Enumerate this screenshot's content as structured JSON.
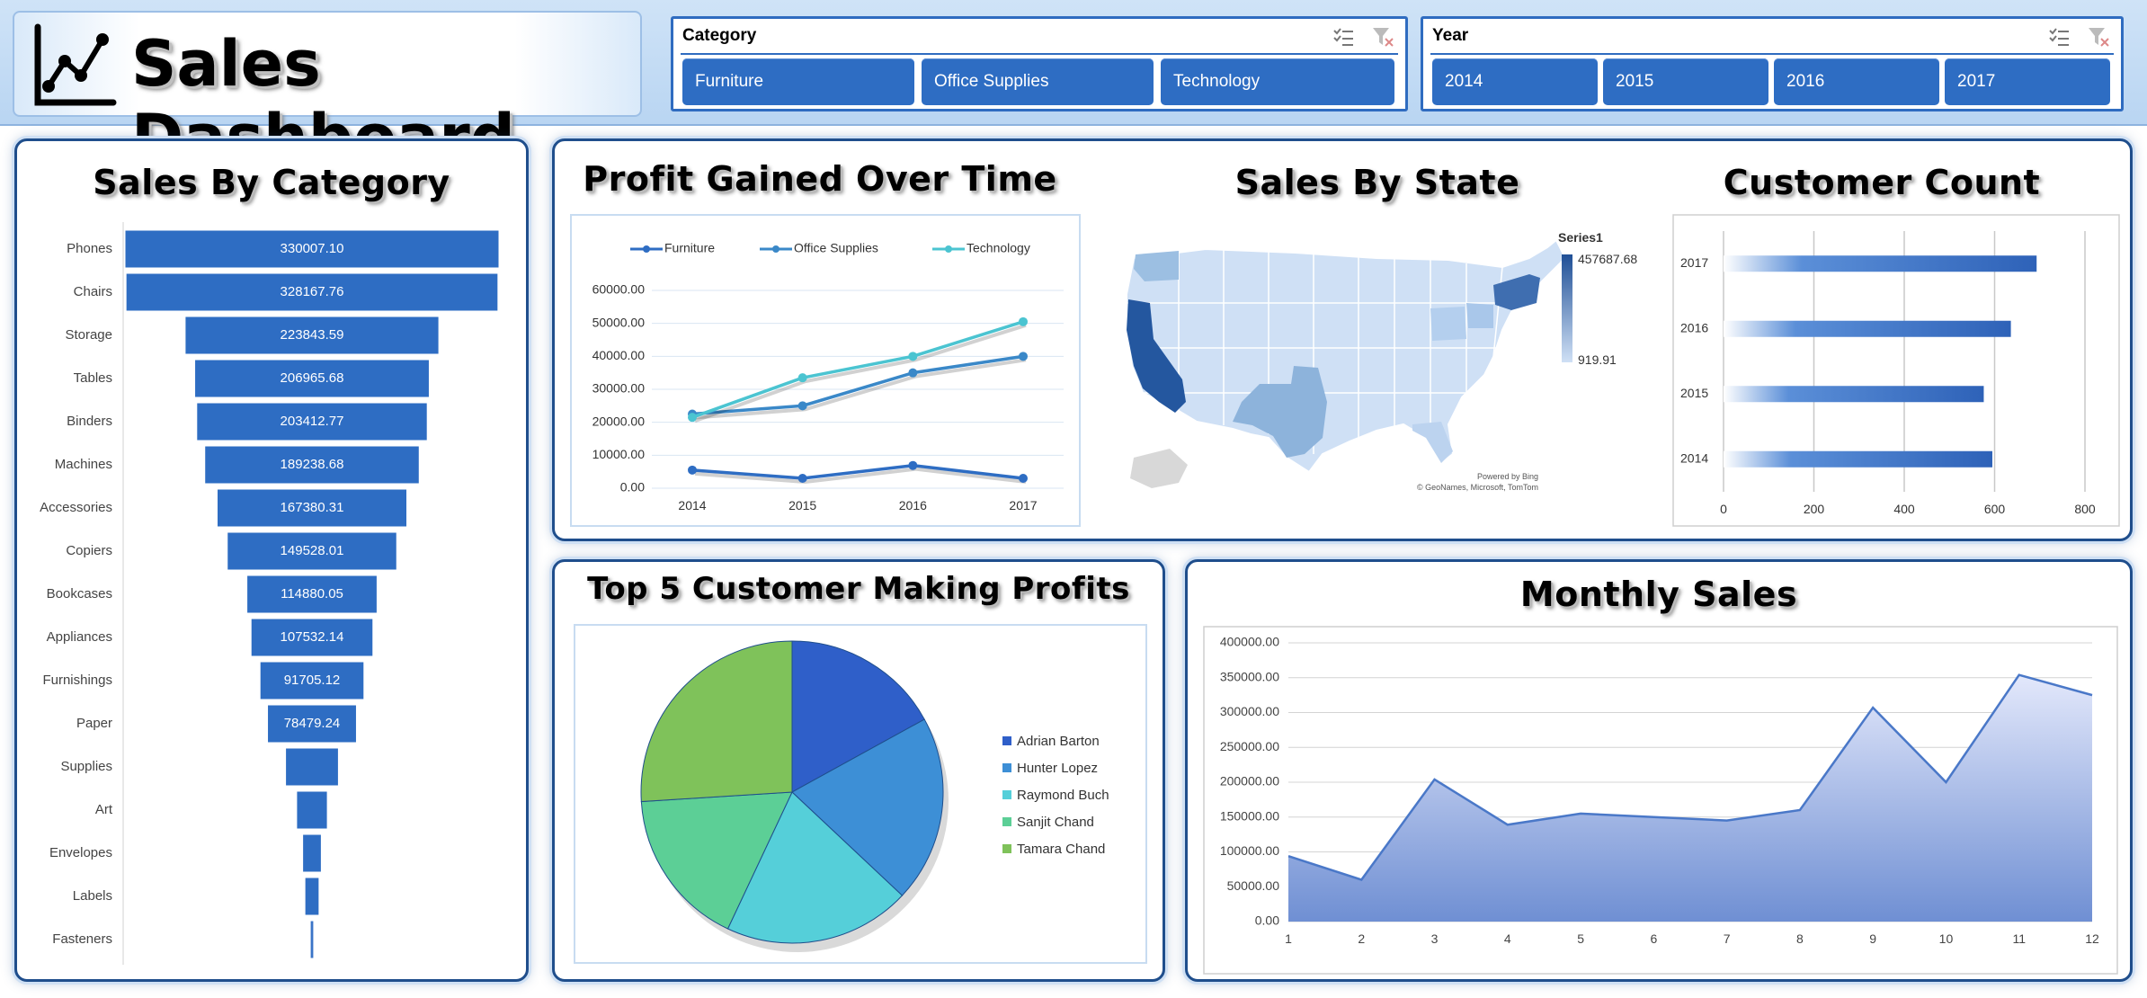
{
  "header": {
    "title": "Sales Dashboard"
  },
  "slicers": {
    "category": {
      "title": "Category",
      "items": [
        "Furniture",
        "Office Supplies",
        "Technology"
      ]
    },
    "year": {
      "title": "Year",
      "items": [
        "2014",
        "2015",
        "2016",
        "2017"
      ]
    }
  },
  "colors": {
    "primary": "#2e6dc3",
    "panel_border": "#1f4e8c",
    "accent_light": "#cfe3f7"
  },
  "panels": {
    "sales_by_category": {
      "title": "Sales By Category"
    },
    "profit_over_time": {
      "title": "Profit Gained Over Time"
    },
    "sales_by_state": {
      "title": "Sales By State",
      "legend_title": "Series1",
      "legend_max": "457687.68",
      "legend_min": "919.91",
      "credit_1": "Powered by Bing",
      "credit_2": "© GeoNames, Microsoft, TomTom"
    },
    "customer_count": {
      "title": "Customer Count"
    },
    "top5_customers": {
      "title": "Top 5 Customer Making Profits"
    },
    "monthly_sales": {
      "title": "Monthly Sales"
    }
  },
  "chart_data": [
    {
      "id": "sales_by_category",
      "type": "bar",
      "orientation": "horizontal",
      "style": "funnel",
      "categories": [
        "Phones",
        "Chairs",
        "Storage",
        "Tables",
        "Binders",
        "Machines",
        "Accessories",
        "Copiers",
        "Bookcases",
        "Appliances",
        "Furnishings",
        "Paper",
        "Supplies",
        "Art",
        "Envelopes",
        "Labels",
        "Fasteners"
      ],
      "values": [
        330007.1,
        328167.76,
        223843.59,
        206965.68,
        203412.77,
        189238.68,
        167380.31,
        149528.01,
        114880.05,
        107532.14,
        91705.12,
        78479.24,
        46673.54,
        27118.79,
        16476.4,
        12486.31,
        3024.28
      ],
      "labels": [
        "330007.10",
        "328167.76",
        "223843.59",
        "206965.68",
        "203412.77",
        "189238.68",
        "167380.31",
        "149528.01",
        "114880.05",
        "107532.14",
        "91705.12",
        "78479.24",
        "",
        "",
        "",
        "",
        ""
      ],
      "title": "Sales By Category"
    },
    {
      "id": "profit_over_time",
      "type": "line",
      "categories": [
        "2014",
        "2015",
        "2016",
        "2017"
      ],
      "series": [
        {
          "name": "Furniture",
          "values": [
            5500,
            3000,
            6900,
            3000
          ],
          "color": "#2e6dc3"
        },
        {
          "name": "Office Supplies",
          "values": [
            22500,
            25000,
            35000,
            40000
          ],
          "color": "#3a88c8"
        },
        {
          "name": "Technology",
          "values": [
            21500,
            33500,
            40000,
            50500
          ],
          "color": "#4bc4d1"
        }
      ],
      "ylim": [
        0,
        60000
      ],
      "yticks": [
        "0.00",
        "10000.00",
        "20000.00",
        "30000.00",
        "40000.00",
        "50000.00",
        "60000.00"
      ],
      "legend": "top",
      "grid": true,
      "title": "Profit Gained Over Time"
    },
    {
      "id": "sales_by_state",
      "type": "map",
      "region": "United States",
      "series_name": "Series1",
      "range": [
        919.91,
        457687.68
      ],
      "highlights": [
        {
          "state": "California",
          "level": 1.0
        },
        {
          "state": "New York",
          "level": 0.68
        },
        {
          "state": "Texas",
          "level": 0.37
        },
        {
          "state": "Washington",
          "level": 0.3
        }
      ],
      "title": "Sales By State"
    },
    {
      "id": "customer_count",
      "type": "bar",
      "orientation": "horizontal",
      "categories": [
        "2017",
        "2016",
        "2015",
        "2014"
      ],
      "values": [
        693,
        636,
        576,
        595
      ],
      "xlim": [
        0,
        800
      ],
      "xticks": [
        "0",
        "200",
        "400",
        "600",
        "800"
      ],
      "grid": true,
      "title": "Customer Count"
    },
    {
      "id": "top5_customers",
      "type": "pie",
      "labels": [
        "Adrian Barton",
        "Hunter Lopez",
        "Raymond Buch",
        "Sanjit Chand",
        "Tamara Chand"
      ],
      "values": [
        17,
        20,
        20,
        17,
        26
      ],
      "colors": [
        "#2f5fc9",
        "#3d8fd6",
        "#55cfd9",
        "#5ccf96",
        "#7fc25a"
      ],
      "legend": "right",
      "title": "Top 5 Customer Making Profits"
    },
    {
      "id": "monthly_sales",
      "type": "area",
      "x": [
        1,
        2,
        3,
        4,
        5,
        6,
        7,
        8,
        9,
        10,
        11,
        12
      ],
      "values": [
        94000,
        60000,
        204000,
        139000,
        155000,
        150000,
        145000,
        160000,
        307000,
        200000,
        354000,
        325000
      ],
      "ylim": [
        0,
        400000
      ],
      "yticks": [
        "0.00",
        "50000.00",
        "100000.00",
        "150000.00",
        "200000.00",
        "250000.00",
        "300000.00",
        "350000.00",
        "400000.00"
      ],
      "grid": true,
      "title": "Monthly Sales"
    }
  ]
}
